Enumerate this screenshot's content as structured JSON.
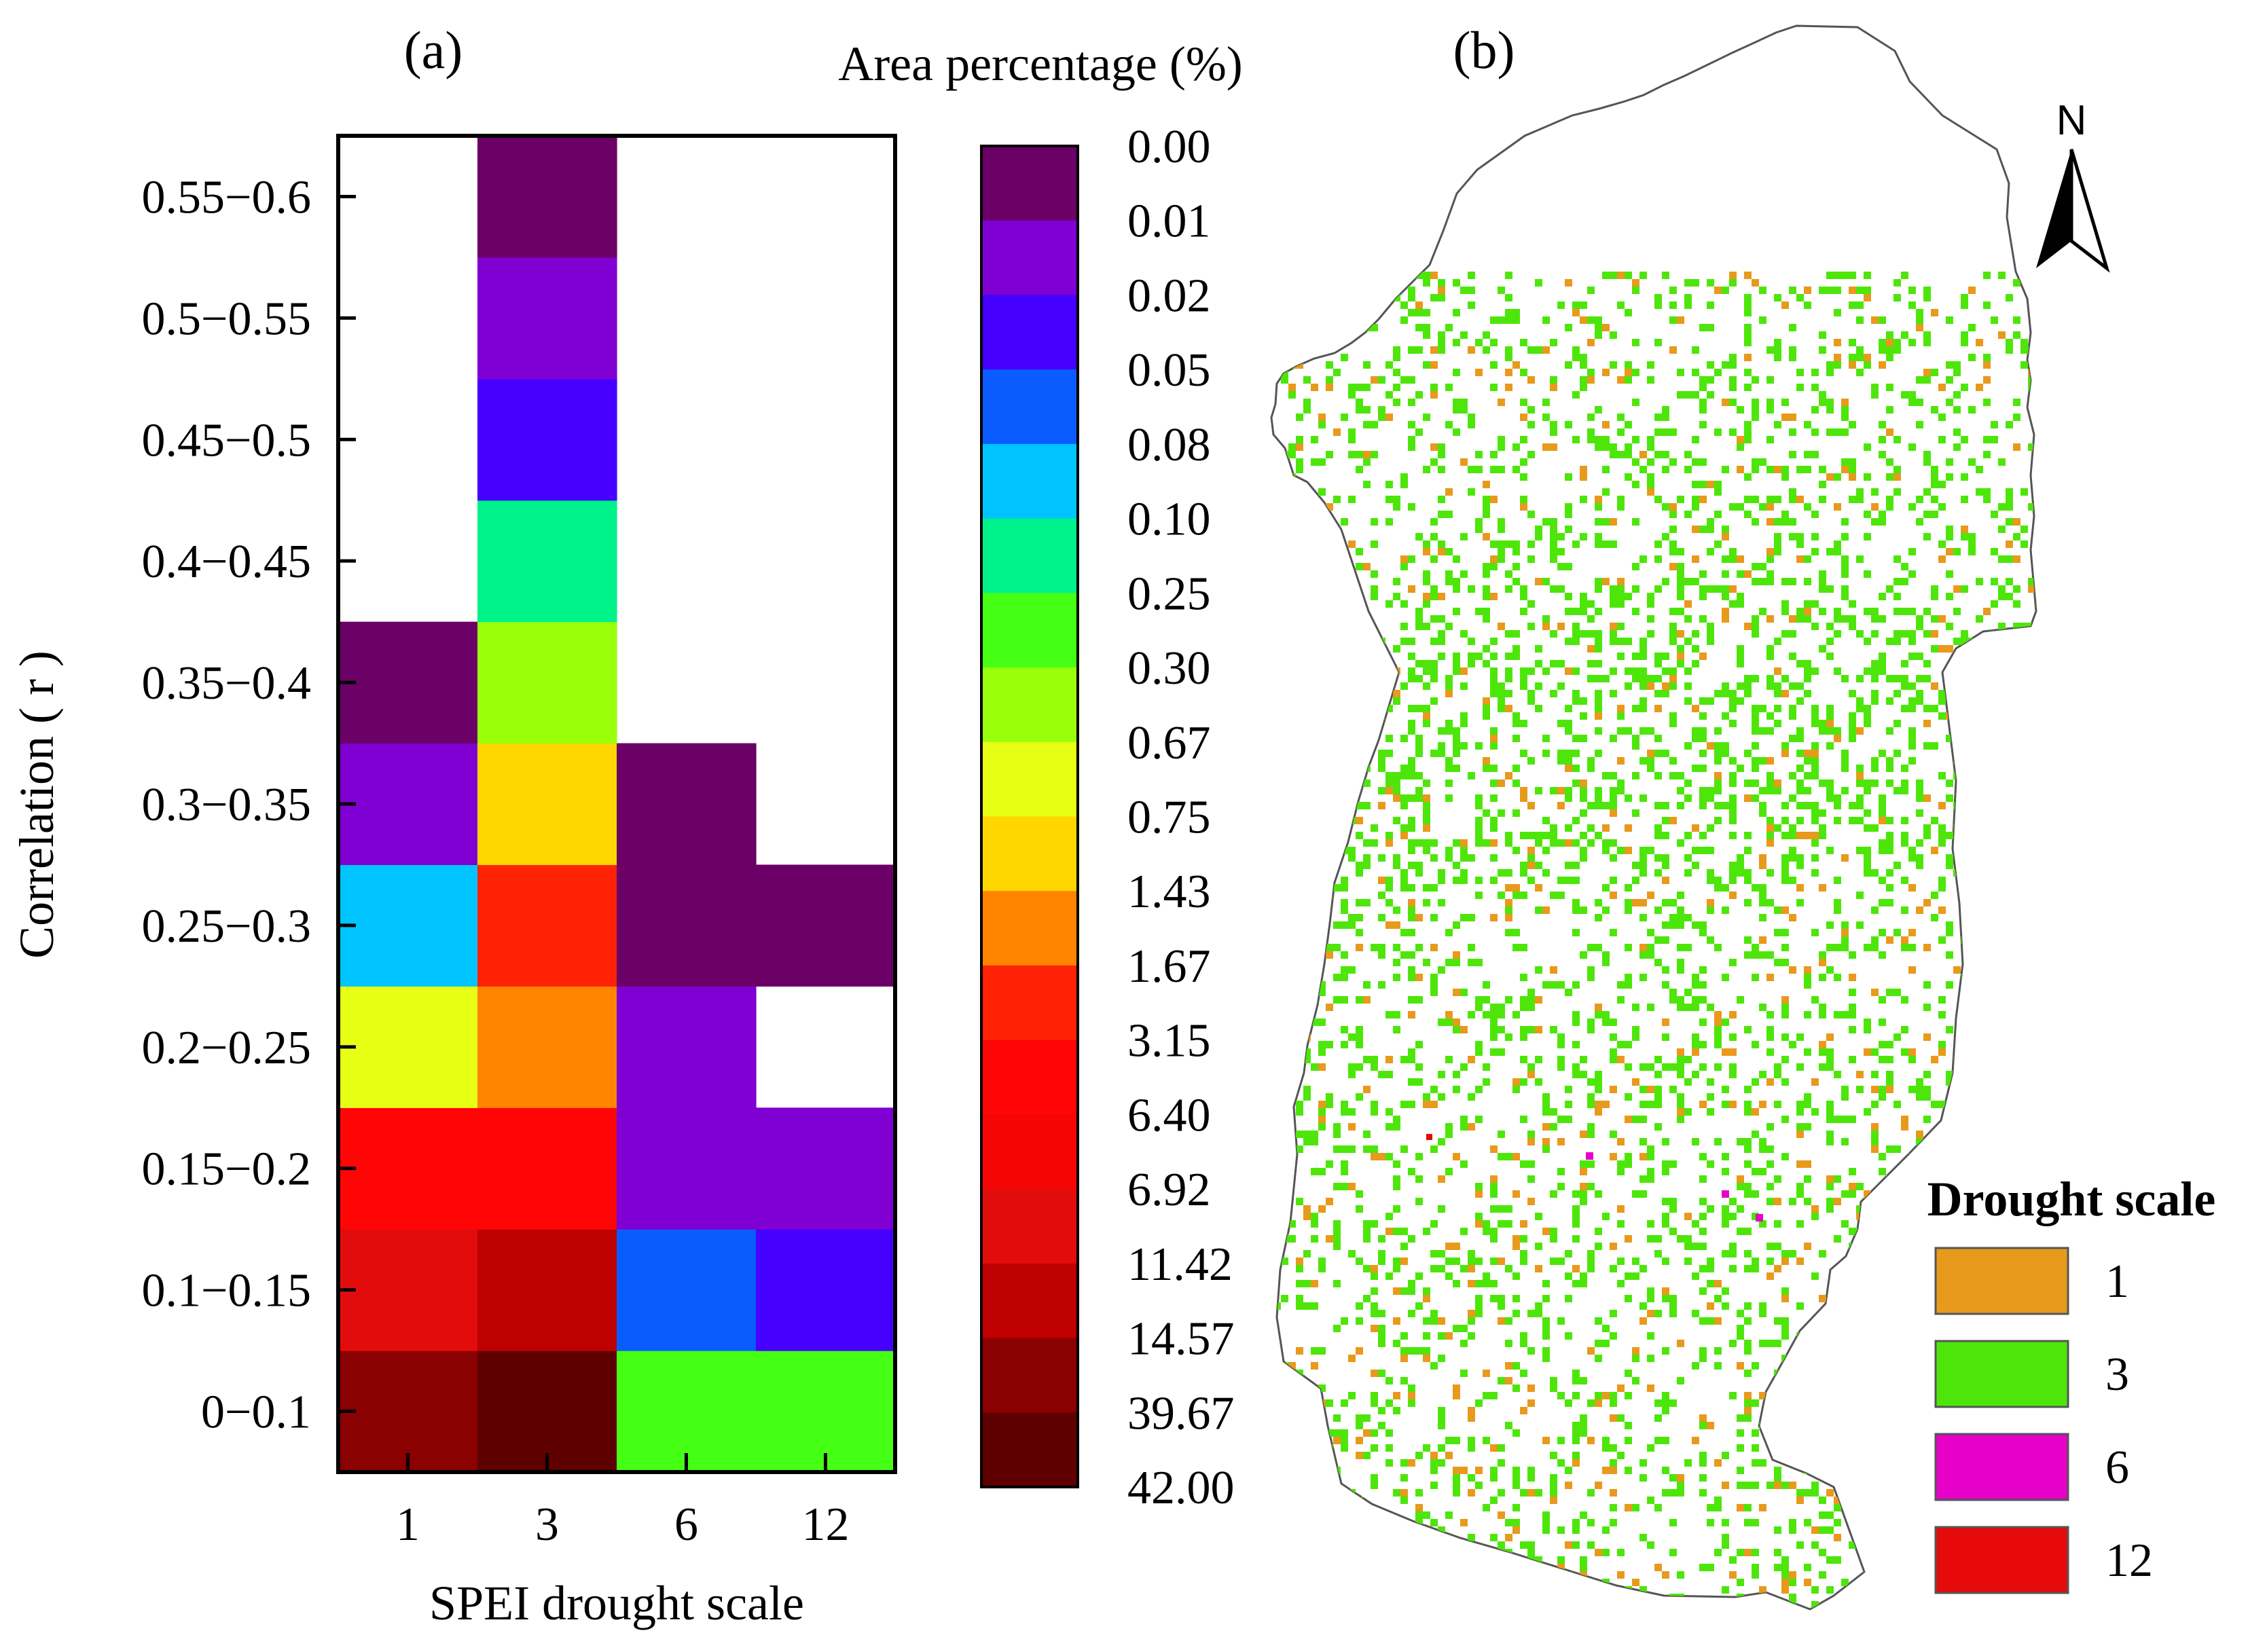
{
  "chart_data": [
    {
      "panel_label": "(a)",
      "type": "heatmap",
      "xlabel": "SPEI drought scale",
      "ylabel": "Correlation ( r )",
      "x_categories": [
        "1",
        "3",
        "6",
        "12"
      ],
      "y_categories": [
        "0−0.1",
        "0.1−0.15",
        "0.15−0.2",
        "0.2−0.25",
        "0.25−0.3",
        "0.3−0.35",
        "0.35−0.4",
        "0.4−0.45",
        "0.45−0.5",
        "0.5−0.55",
        "0.55−0.6"
      ],
      "cells": [
        {
          "x": "1",
          "y": "0−0.1",
          "color": "#8b0000"
        },
        {
          "x": "3",
          "y": "0−0.1",
          "color": "#5e0000"
        },
        {
          "x": "6",
          "y": "0−0.1",
          "color": "#45ff14"
        },
        {
          "x": "12",
          "y": "0−0.1",
          "color": "#45ff14"
        },
        {
          "x": "1",
          "y": "0.1−0.15",
          "color": "#e30c0c"
        },
        {
          "x": "3",
          "y": "0.1−0.15",
          "color": "#bf0000"
        },
        {
          "x": "6",
          "y": "0.1−0.15",
          "color": "#0a5cff"
        },
        {
          "x": "12",
          "y": "0.1−0.15",
          "color": "#4500ff"
        },
        {
          "x": "1",
          "y": "0.15−0.2",
          "color": "#ff0505"
        },
        {
          "x": "3",
          "y": "0.15−0.2",
          "color": "#ff0505"
        },
        {
          "x": "6",
          "y": "0.15−0.2",
          "color": "#8000d4"
        },
        {
          "x": "12",
          "y": "0.15−0.2",
          "color": "#8000d4"
        },
        {
          "x": "1",
          "y": "0.2−0.25",
          "color": "#e6ff14"
        },
        {
          "x": "3",
          "y": "0.2−0.25",
          "color": "#ff8400"
        },
        {
          "x": "6",
          "y": "0.2−0.25",
          "color": "#8000d4"
        },
        {
          "x": "1",
          "y": "0.25−0.3",
          "color": "#00c4ff"
        },
        {
          "x": "3",
          "y": "0.25−0.3",
          "color": "#ff2205"
        },
        {
          "x": "6",
          "y": "0.25−0.3",
          "color": "#6b0066"
        },
        {
          "x": "12",
          "y": "0.25−0.3",
          "color": "#6b0066"
        },
        {
          "x": "1",
          "y": "0.3−0.35",
          "color": "#8000d4"
        },
        {
          "x": "3",
          "y": "0.3−0.35",
          "color": "#ffd600"
        },
        {
          "x": "6",
          "y": "0.3−0.35",
          "color": "#6b0066"
        },
        {
          "x": "1",
          "y": "0.35−0.4",
          "color": "#6b0066"
        },
        {
          "x": "3",
          "y": "0.35−0.4",
          "color": "#99ff0a"
        },
        {
          "x": "3",
          "y": "0.4−0.45",
          "color": "#00f28a"
        },
        {
          "x": "3",
          "y": "0.45−0.5",
          "color": "#4500ff"
        },
        {
          "x": "3",
          "y": "0.5−0.55",
          "color": "#8000d4"
        },
        {
          "x": "3",
          "y": "0.55−0.6",
          "color": "#6b0066"
        }
      ],
      "colorbar": {
        "title": "Area percentage (%)",
        "ticks": [
          "0.00",
          "0.01",
          "0.02",
          "0.05",
          "0.08",
          "0.10",
          "0.25",
          "0.30",
          "0.67",
          "0.75",
          "1.43",
          "1.67",
          "3.15",
          "6.40",
          "6.92",
          "11.42",
          "14.57",
          "39.67",
          "42.00"
        ],
        "colors": [
          "#6b0066",
          "#8000d4",
          "#4500ff",
          "#0a5cff",
          "#00c4ff",
          "#00f28a",
          "#45ff14",
          "#99ff0a",
          "#e6ff14",
          "#ffd600",
          "#ff8400",
          "#ff2205",
          "#ff0505",
          "#f50505",
          "#e30c0c",
          "#bf0000",
          "#8b0000",
          "#5e0000"
        ]
      }
    },
    {
      "panel_label": "(b)",
      "type": "map",
      "north_label": "N",
      "legend": {
        "title": "Drought scale",
        "items": [
          {
            "label": "1",
            "color": "#e89a1c"
          },
          {
            "label": "3",
            "color": "#4ee60a"
          },
          {
            "label": "6",
            "color": "#e600c8"
          },
          {
            "label": "12",
            "color": "#e60a0a"
          }
        ]
      }
    }
  ]
}
